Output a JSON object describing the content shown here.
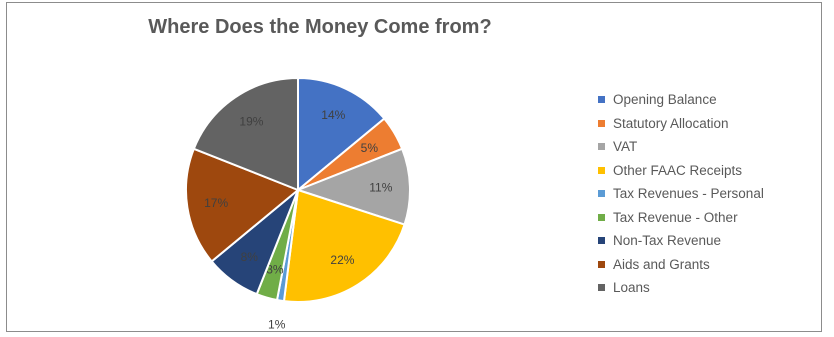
{
  "chart_data": {
    "type": "pie",
    "title": "Where Does the Money Come from?",
    "slices": [
      {
        "label": "Opening Balance",
        "value": 14,
        "data_label": "14%",
        "color": "#4472C4"
      },
      {
        "label": "Statutory Allocation",
        "value": 5,
        "data_label": "5%",
        "color": "#ED7D31"
      },
      {
        "label": "VAT",
        "value": 11,
        "data_label": "11%",
        "color": "#A5A5A5"
      },
      {
        "label": "Other FAAC Receipts",
        "value": 22,
        "data_label": "22%",
        "color": "#FFC000"
      },
      {
        "label": "Tax Revenues - Personal",
        "value": 1,
        "data_label": "1%",
        "color": "#5B9BD5"
      },
      {
        "label": "Tax Revenue - Other",
        "value": 3,
        "data_label": "3%",
        "color": "#70AD47"
      },
      {
        "label": "Non-Tax Revenue",
        "value": 8,
        "data_label": "8%",
        "color": "#264478"
      },
      {
        "label": "Aids and Grants",
        "value": 17,
        "data_label": "17%",
        "color": "#9E480E"
      },
      {
        "label": "Loans",
        "value": 19,
        "data_label": "19%",
        "color": "#636363"
      }
    ],
    "legend_position": "right"
  }
}
